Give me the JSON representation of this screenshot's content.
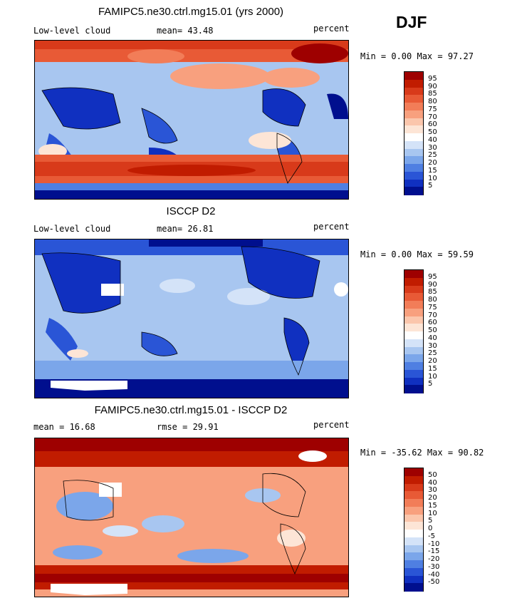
{
  "season": "DJF",
  "panels": [
    {
      "title": "FAMIPC5.ne30.ctrl.mg15.01 (yrs 2000)",
      "left_label": "Low-level cloud",
      "mid_label": "mean=  43.48",
      "right_label": "percent",
      "minmax": "Min =   0.00 Max =  97.27",
      "scale": "abs"
    },
    {
      "title": "ISCCP D2",
      "left_label": "Low-level cloud",
      "mid_label": "mean=  26.81",
      "right_label": "percent",
      "minmax": "Min =   0.00 Max =  59.59",
      "scale": "abs"
    },
    {
      "title": "FAMIPC5.ne30.ctrl.mg15.01 - ISCCP D2",
      "left_label": "mean =  16.68",
      "mid_label": "rmse =  29.91",
      "right_label": "percent",
      "minmax": "Min = -35.62 Max =  90.82",
      "scale": "diff"
    }
  ],
  "colorbars": {
    "abs": {
      "labels": [
        "95",
        "90",
        "85",
        "80",
        "75",
        "70",
        "60",
        "50",
        "40",
        "30",
        "25",
        "20",
        "15",
        "10",
        "5"
      ],
      "colors": [
        "#9e0000",
        "#c11c00",
        "#d83a1a",
        "#e85a36",
        "#f27d58",
        "#f8a07e",
        "#fbc6ac",
        "#fde5d6",
        "#ffffff",
        "#d4e3f8",
        "#a8c6f0",
        "#7ba6ea",
        "#4f7fe2",
        "#2a55d6",
        "#1030c0",
        "#000f8e"
      ]
    },
    "diff": {
      "labels": [
        "50",
        "40",
        "30",
        "20",
        "15",
        "10",
        "5",
        "0",
        "-5",
        "-10",
        "-15",
        "-20",
        "-30",
        "-40",
        "-50"
      ],
      "colors": [
        "#9e0000",
        "#c11c00",
        "#d83a1a",
        "#e85a36",
        "#f27d58",
        "#f8a07e",
        "#fbc6ac",
        "#fde5d6",
        "#ffffff",
        "#d4e3f8",
        "#a8c6f0",
        "#7ba6ea",
        "#4f7fe2",
        "#2a55d6",
        "#1030c0",
        "#000f8e"
      ]
    }
  },
  "map_colors": {
    "p1_base": "#a8c6f0",
    "p2_base": "#a8c6f0",
    "p3_base": "#f8a07e",
    "missing": "#ffffff"
  }
}
